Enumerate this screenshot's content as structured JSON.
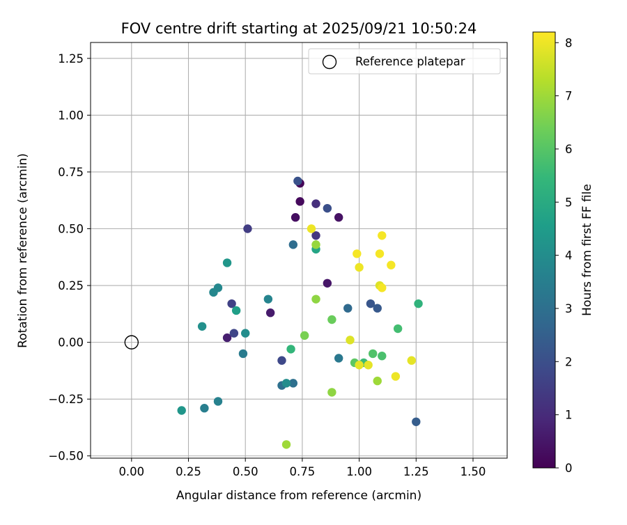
{
  "chart_data": {
    "type": "scatter",
    "title": "FOV centre drift starting at 2025/09/21 10:50:24",
    "xlabel": "Angular distance from reference (arcmin)",
    "ylabel": "Rotation from reference (arcmin)",
    "xlim": [
      -0.18,
      1.65
    ],
    "ylim": [
      -0.51,
      1.32
    ],
    "xticks": [
      0.0,
      0.25,
      0.5,
      0.75,
      1.0,
      1.25,
      1.5
    ],
    "xtick_labels": [
      "0.00",
      "0.25",
      "0.50",
      "0.75",
      "1.00",
      "1.25",
      "1.50"
    ],
    "yticks": [
      -0.5,
      -0.25,
      0.0,
      0.25,
      0.5,
      0.75,
      1.0,
      1.25
    ],
    "ytick_labels": [
      "−0.50",
      "−0.25",
      "0.00",
      "0.25",
      "0.50",
      "0.75",
      "1.00",
      "1.25"
    ],
    "grid": true,
    "legend": {
      "position": "top-right",
      "entries": [
        "Reference platepar"
      ]
    },
    "reference_point": {
      "x": 0.0,
      "y": 0.0,
      "label": "Reference platepar"
    },
    "colorbar": {
      "label": "Hours from first FF file",
      "min": 0,
      "max": 8.2,
      "ticks": [
        0,
        1,
        2,
        3,
        4,
        5,
        6,
        7,
        8
      ],
      "tick_labels": [
        "0",
        "1",
        "2",
        "3",
        "4",
        "5",
        "6",
        "7",
        "8"
      ],
      "colormap": "viridis",
      "colormap_stops": [
        "#440154",
        "#482878",
        "#3e4989",
        "#31688e",
        "#26828e",
        "#1f9e89",
        "#35b779",
        "#6ece58",
        "#b5de2b",
        "#fde725"
      ]
    },
    "points": [
      {
        "x": 0.74,
        "y": 0.7,
        "hours": 0.1
      },
      {
        "x": 0.74,
        "y": 0.62,
        "hours": 0.2
      },
      {
        "x": 0.72,
        "y": 0.55,
        "hours": 0.3
      },
      {
        "x": 0.91,
        "y": 0.55,
        "hours": 0.4
      },
      {
        "x": 0.86,
        "y": 0.26,
        "hours": 0.5
      },
      {
        "x": 0.61,
        "y": 0.13,
        "hours": 0.6
      },
      {
        "x": 0.42,
        "y": 0.02,
        "hours": 0.7
      },
      {
        "x": 0.81,
        "y": 0.61,
        "hours": 1.1
      },
      {
        "x": 0.81,
        "y": 0.47,
        "hours": 1.3
      },
      {
        "x": 0.51,
        "y": 0.5,
        "hours": 1.5
      },
      {
        "x": 0.44,
        "y": 0.17,
        "hours": 1.6
      },
      {
        "x": 0.45,
        "y": 0.04,
        "hours": 1.7
      },
      {
        "x": 0.66,
        "y": -0.08,
        "hours": 1.8
      },
      {
        "x": 0.86,
        "y": 0.59,
        "hours": 2.0
      },
      {
        "x": 0.73,
        "y": 0.71,
        "hours": 2.1
      },
      {
        "x": 1.05,
        "y": 0.17,
        "hours": 2.2
      },
      {
        "x": 1.08,
        "y": 0.15,
        "hours": 2.3
      },
      {
        "x": 1.25,
        "y": -0.35,
        "hours": 2.4
      },
      {
        "x": 0.95,
        "y": 0.15,
        "hours": 2.8
      },
      {
        "x": 0.71,
        "y": 0.43,
        "hours": 2.9
      },
      {
        "x": 0.66,
        "y": -0.19,
        "hours": 3.0
      },
      {
        "x": 0.71,
        "y": -0.18,
        "hours": 3.0
      },
      {
        "x": 0.91,
        "y": -0.07,
        "hours": 3.3
      },
      {
        "x": 0.49,
        "y": -0.05,
        "hours": 3.4
      },
      {
        "x": 0.32,
        "y": -0.29,
        "hours": 3.5
      },
      {
        "x": 0.38,
        "y": -0.26,
        "hours": 3.6
      },
      {
        "x": 0.6,
        "y": 0.19,
        "hours": 3.7
      },
      {
        "x": 0.36,
        "y": 0.22,
        "hours": 3.8
      },
      {
        "x": 0.38,
        "y": 0.24,
        "hours": 3.8
      },
      {
        "x": 0.68,
        "y": -0.18,
        "hours": 4.0
      },
      {
        "x": 0.5,
        "y": 0.04,
        "hours": 4.0
      },
      {
        "x": 0.31,
        "y": 0.07,
        "hours": 4.1
      },
      {
        "x": 0.42,
        "y": 0.35,
        "hours": 4.3
      },
      {
        "x": 0.22,
        "y": -0.3,
        "hours": 4.3
      },
      {
        "x": 0.46,
        "y": 0.14,
        "hours": 4.6
      },
      {
        "x": 0.81,
        "y": 0.41,
        "hours": 4.8
      },
      {
        "x": 1.26,
        "y": 0.17,
        "hours": 5.3
      },
      {
        "x": 0.7,
        "y": -0.03,
        "hours": 5.4
      },
      {
        "x": 1.02,
        "y": -0.09,
        "hours": 5.6
      },
      {
        "x": 1.17,
        "y": 0.06,
        "hours": 5.7
      },
      {
        "x": 1.1,
        "y": -0.06,
        "hours": 5.8
      },
      {
        "x": 1.06,
        "y": -0.05,
        "hours": 5.9
      },
      {
        "x": 0.98,
        "y": -0.09,
        "hours": 6.1
      },
      {
        "x": 0.88,
        "y": 0.1,
        "hours": 6.3
      },
      {
        "x": 0.76,
        "y": 0.03,
        "hours": 6.5
      },
      {
        "x": 0.88,
        "y": -0.22,
        "hours": 6.8
      },
      {
        "x": 0.81,
        "y": 0.19,
        "hours": 6.8
      },
      {
        "x": 0.81,
        "y": 0.43,
        "hours": 6.9
      },
      {
        "x": 1.08,
        "y": -0.17,
        "hours": 7.0
      },
      {
        "x": 0.68,
        "y": -0.45,
        "hours": 7.0
      },
      {
        "x": 0.96,
        "y": 0.01,
        "hours": 7.8
      },
      {
        "x": 1.09,
        "y": 0.25,
        "hours": 7.8
      },
      {
        "x": 1.04,
        "y": -0.1,
        "hours": 7.9
      },
      {
        "x": 1.0,
        "y": -0.1,
        "hours": 7.9
      },
      {
        "x": 1.23,
        "y": -0.08,
        "hours": 7.9
      },
      {
        "x": 0.79,
        "y": 0.5,
        "hours": 8.0
      },
      {
        "x": 1.0,
        "y": 0.33,
        "hours": 8.0
      },
      {
        "x": 1.16,
        "y": -0.15,
        "hours": 8.0
      },
      {
        "x": 1.14,
        "y": 0.34,
        "hours": 8.1
      },
      {
        "x": 0.99,
        "y": 0.39,
        "hours": 8.1
      },
      {
        "x": 1.09,
        "y": 0.39,
        "hours": 8.1
      },
      {
        "x": 1.1,
        "y": 0.24,
        "hours": 8.1
      },
      {
        "x": 1.1,
        "y": 0.47,
        "hours": 8.1
      }
    ]
  }
}
